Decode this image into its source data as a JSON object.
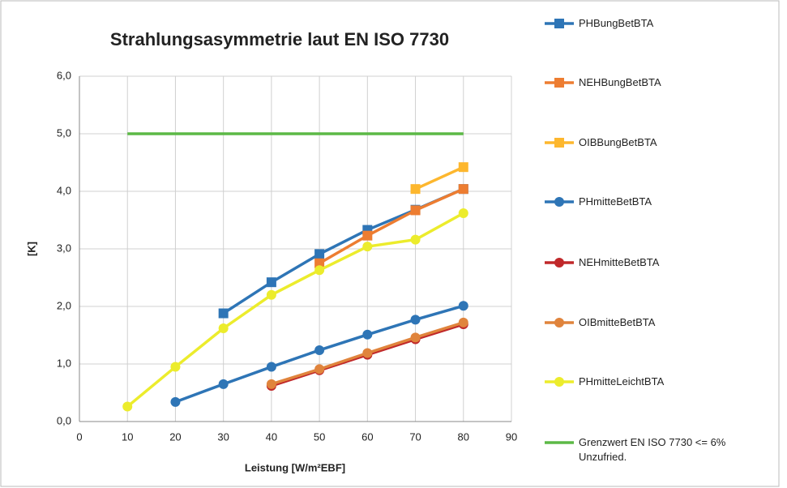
{
  "chart_data": {
    "type": "line",
    "title": "Strahlungsasymmetrie laut EN ISO 7730",
    "x_label": "Leistung [W/m²EBF]",
    "y_label": "[K]",
    "xlim": [
      0,
      90
    ],
    "xticks": [
      0,
      10,
      20,
      30,
      40,
      50,
      60,
      70,
      80,
      90
    ],
    "ylim": [
      0,
      6
    ],
    "yticks": [
      {
        "value": 0,
        "label": "0,0"
      },
      {
        "value": 1,
        "label": "1,0"
      },
      {
        "value": 2,
        "label": "2,0"
      },
      {
        "value": 3,
        "label": "3,0"
      },
      {
        "value": 4,
        "label": "4,0"
      },
      {
        "value": 5,
        "label": "5,0"
      },
      {
        "value": 6,
        "label": "6,0"
      }
    ],
    "grid": true,
    "legend": "right",
    "series": [
      {
        "name": "PHBungBetBTA",
        "color": "#2e75b6",
        "marker": "square",
        "x": [
          30,
          40,
          50,
          60,
          70,
          80
        ],
        "values": [
          1.88,
          2.42,
          2.91,
          3.33,
          3.68,
          4.04
        ]
      },
      {
        "name": "NEHBungBetBTA",
        "color": "#ed7d31",
        "marker": "square",
        "x": [
          50,
          60,
          70,
          80
        ],
        "values": [
          2.75,
          3.23,
          3.67,
          4.04
        ]
      },
      {
        "name": "OIBBungBetBTA",
        "color": "#fdb72e",
        "marker": "square",
        "x": [
          70,
          80
        ],
        "values": [
          4.04,
          4.42
        ]
      },
      {
        "name": "PHmitteBetBTA",
        "color": "#2e75b6",
        "marker": "circle",
        "x": [
          20,
          30,
          40,
          50,
          60,
          70,
          80
        ],
        "values": [
          0.34,
          0.65,
          0.95,
          1.24,
          1.51,
          1.77,
          2.01
        ]
      },
      {
        "name": "NEHmitteBetBTA",
        "color": "#c0282a",
        "marker": "circle",
        "x": [
          40,
          50,
          60,
          70,
          80
        ],
        "values": [
          0.62,
          0.89,
          1.16,
          1.43,
          1.69
        ]
      },
      {
        "name": "OIBmitteBetBTA",
        "color": "#e0843c",
        "marker": "circle",
        "x": [
          40,
          50,
          60,
          70,
          80
        ],
        "values": [
          0.65,
          0.91,
          1.19,
          1.46,
          1.72
        ]
      },
      {
        "name": "PHmitteLeichtBTA",
        "color": "#ecec2c",
        "marker": "circle",
        "x": [
          10,
          20,
          30,
          40,
          50,
          60,
          70,
          80
        ],
        "values": [
          0.26,
          0.95,
          1.62,
          2.2,
          2.63,
          3.04,
          3.16,
          3.62
        ]
      },
      {
        "name": "Grenzwert EN ISO 7730 <= 6% Unzufried.",
        "color": "#5cb946",
        "marker": "none",
        "x": [
          10,
          80
        ],
        "values": [
          5,
          5
        ]
      }
    ]
  }
}
